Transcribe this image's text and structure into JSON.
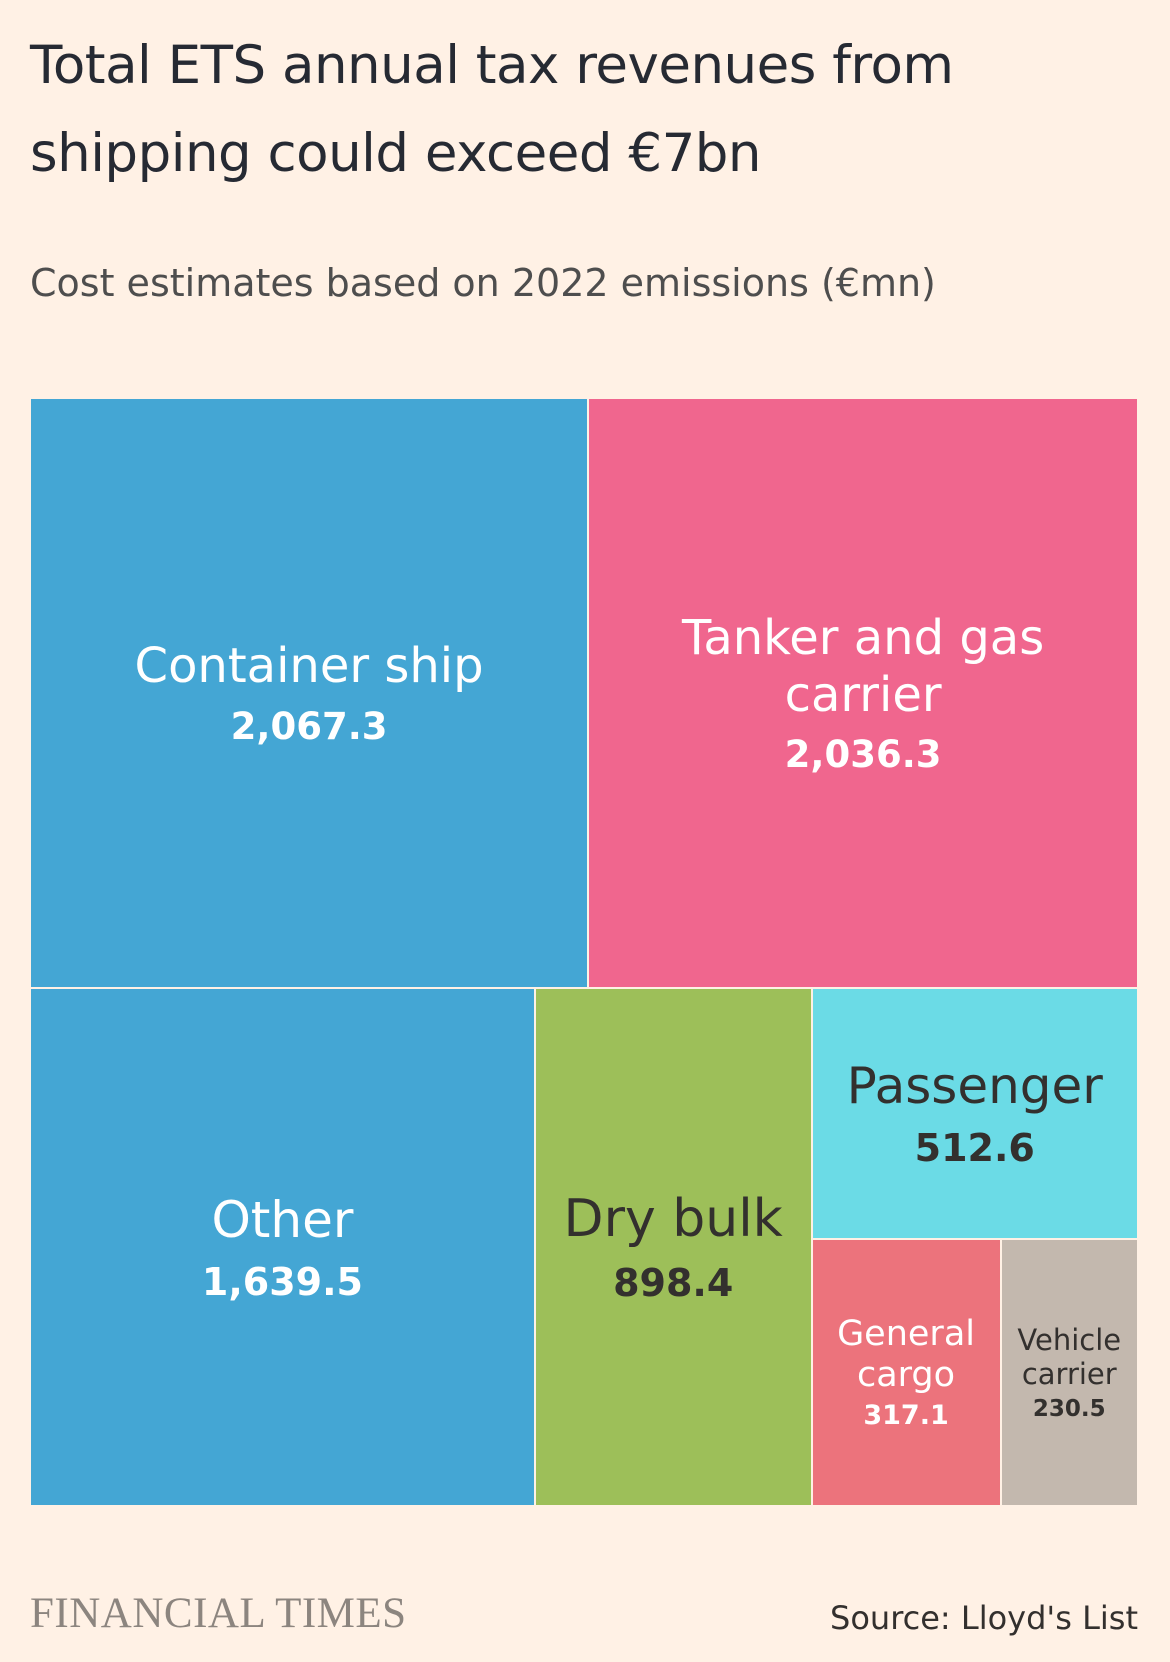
{
  "title": "Total ETS annual tax revenues from shipping could exceed €7bn",
  "subtitle": "Cost estimates based on 2022 emissions (€mn)",
  "chart_data": {
    "type": "treemap",
    "unit": "€mn",
    "items": [
      {
        "name": "Container ship",
        "value": 2067.3,
        "label": "2,067.3",
        "color": "#44a6d4",
        "text_color": "#ffffff"
      },
      {
        "name": "Tanker and gas carrier",
        "value": 2036.3,
        "label": "2,036.3",
        "color": "#f0668e",
        "text_color": "#ffffff"
      },
      {
        "name": "Other",
        "value": 1639.5,
        "label": "1,639.5",
        "color": "#44a6d4",
        "text_color": "#ffffff"
      },
      {
        "name": "Dry bulk",
        "value": 898.4,
        "label": "898.4",
        "color": "#9dbf59",
        "text_color": "#33302e"
      },
      {
        "name": "Passenger",
        "value": 512.6,
        "label": "512.6",
        "color": "#6bdbe6",
        "text_color": "#33302e"
      },
      {
        "name": "General cargo",
        "value": 317.1,
        "label": "317.1",
        "color": "#ec737c",
        "text_color": "#ffffff"
      },
      {
        "name": "Vehicle carrier",
        "value": 230.5,
        "label": "230.5",
        "color": "#c3b8ae",
        "text_color": "#33302e"
      }
    ]
  },
  "footer": {
    "brand": "FINANCIAL TIMES",
    "source": "Source: Lloyd's List"
  }
}
